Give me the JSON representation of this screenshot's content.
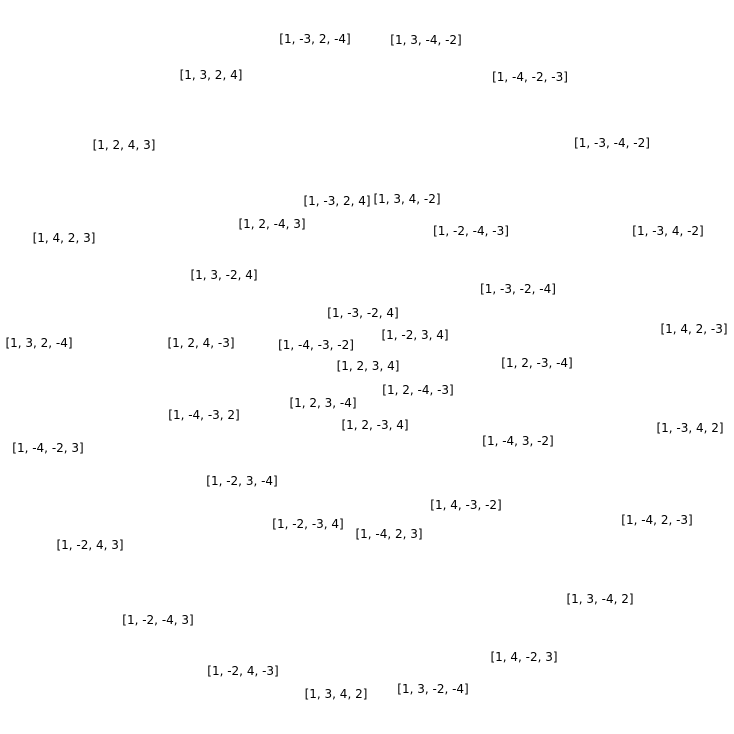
{
  "text_color": "#000000",
  "background_color": "#ffffff",
  "nodes": [
    "[1, -3, 2, -4]",
    "[1, 3, -4, -2]",
    "[1, 3, 2, 4]",
    "[1, -4, -2, -3]",
    "[1, 2, 4, 3]",
    "[1, -3, -4, -2]",
    "[1, -3, 2, 4]",
    "[1, 3, 4, -2]",
    "[1, 2, -4, 3]",
    "[1, -2, -4, -3]",
    "[1, -3, 4, -2]",
    "[1, 4, 2, 3]",
    "[1, 3, -2, 4]",
    "[1, -3, -2, -4]",
    "[1, -3, -2, 4]",
    "[1, 4, 2, -3]",
    "[1, -2, 3, 4]",
    "[1, 3, 2, -4]",
    "[1, 2, 4, -3]",
    "[1, -4, -3, -2]",
    "[1, 2, 3, 4]",
    "[1, 2, -3, -4]",
    "[1, 2, -4, -3]",
    "[1, 2, 3, -4]",
    "[1, -4, -3, 2]",
    "[1, 2, -3, 4]",
    "[1, -3, 4, 2]",
    "[1, -4, 3, -2]",
    "[1, -4, -2, 3]",
    "[1, -2, 3, -4]",
    "[1, 4, -3, -2]",
    "[1, -4, 2, -3]",
    "[1, -2, -3, 4]",
    "[1, -4, 2, 3]",
    "[1, -2, 4, 3]",
    "[1, 3, -4, 2]",
    "[1, -2, -4, 3]",
    "[1, 4, -2, 3]",
    "[1, -2, 4, -3]",
    "[1, 3, 4, 2]",
    "[1, 3, -2, -4]"
  ]
}
